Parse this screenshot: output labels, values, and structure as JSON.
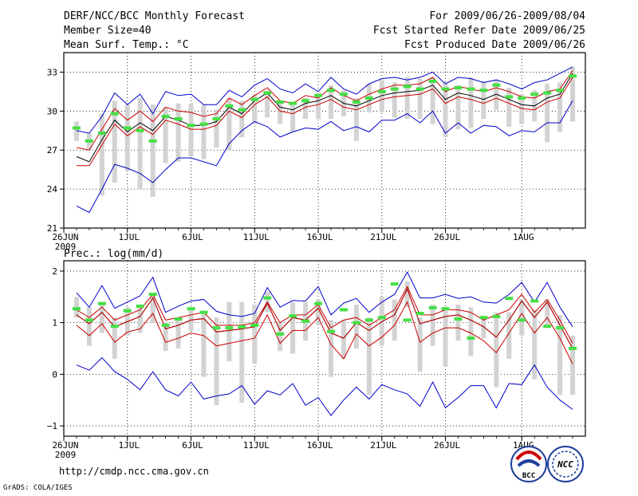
{
  "header": {
    "title": "DERF/NCC/BCC Monthly Forecast",
    "member_size": "Member Size=40",
    "variable": "Mean Surf. Temp.: °C",
    "valid_range": "For 2009/06/26-2009/08/04",
    "start_date": "Fcst Started Refer Date 2009/06/25",
    "produced_date": "Fcst Produced Date 2009/06/26"
  },
  "footer": {
    "url": "http://cmdp.ncc.cma.gov.cn",
    "credit": "GrADS: COLA/IGES",
    "logo_left_text": "BCC",
    "logo_right_text": "NCC"
  },
  "colors": {
    "background": "#ffffff",
    "max_min_line": "#0000cc",
    "spread_line": "#cc0000",
    "ensemble_mean_dark": "#000000",
    "ensemble_mean_light": "#cc0000",
    "member_bar": "#d3d3d3",
    "reference_marker": "#44e044",
    "grid": "#000000"
  },
  "chart_data": [
    {
      "type": "line",
      "title": "Mean Surf. Temp.: °C",
      "xlabel": "",
      "ylabel": "°C",
      "ylim": [
        21,
        34.5
      ],
      "yticks": [
        21,
        24,
        27,
        30,
        33
      ],
      "ytick_labels": [
        "21",
        "24",
        "27",
        "30",
        "33"
      ],
      "xtick_days": [
        0,
        5,
        10,
        15,
        20,
        25,
        30,
        36
      ],
      "xtick_labels": [
        "26JUN",
        "1JUL",
        "6JUL",
        "11JUL",
        "16JUL",
        "21JUL",
        "26JUL",
        "1AUG"
      ],
      "xtick_year": "2009",
      "x": [
        1,
        2,
        3,
        4,
        5,
        6,
        7,
        8,
        9,
        10,
        11,
        12,
        13,
        14,
        15,
        16,
        17,
        18,
        19,
        20,
        21,
        22,
        23,
        24,
        25,
        26,
        27,
        28,
        29,
        30,
        31,
        32,
        33,
        34,
        35,
        36,
        37,
        38,
        39,
        40
      ],
      "series": [
        {
          "name": "ensemble max",
          "color": "#0000cc",
          "values": [
            28.5,
            28.3,
            29.6,
            31.4,
            30.5,
            31.3,
            29.8,
            31.5,
            31.2,
            31.3,
            30.5,
            30.5,
            31.6,
            31.1,
            32.0,
            32.5,
            31.7,
            31.4,
            32.1,
            31.5,
            32.6,
            31.7,
            31.3,
            32.1,
            32.5,
            32.6,
            32.4,
            32.6,
            33.0,
            32.1,
            32.6,
            32.5,
            32.2,
            32.4,
            32.1,
            31.7,
            32.2,
            32.4,
            32.9,
            33.4
          ]
        },
        {
          "name": "spread upper",
          "color": "#cc0000",
          "values": [
            27.2,
            27.0,
            28.6,
            30.2,
            29.3,
            30.0,
            29.2,
            30.3,
            30.0,
            29.9,
            29.6,
            29.8,
            31.0,
            30.5,
            31.2,
            31.8,
            30.8,
            30.6,
            31.2,
            31.0,
            31.8,
            31.2,
            30.8,
            31.3,
            31.7,
            32.0,
            32.0,
            32.1,
            32.6,
            31.5,
            31.9,
            31.7,
            31.5,
            31.8,
            31.5,
            31.1,
            31.0,
            31.5,
            31.7,
            33.1
          ]
        },
        {
          "name": "ensemble mean",
          "color": "#000000",
          "values": [
            26.5,
            26.1,
            27.8,
            29.3,
            28.4,
            29.1,
            28.5,
            29.6,
            29.3,
            28.9,
            28.9,
            29.2,
            30.3,
            29.8,
            30.8,
            31.4,
            30.3,
            30.1,
            30.6,
            30.8,
            31.2,
            30.6,
            30.4,
            30.8,
            31.2,
            31.4,
            31.5,
            31.6,
            32.0,
            30.9,
            31.4,
            31.2,
            30.9,
            31.3,
            30.9,
            30.5,
            30.4,
            31.0,
            31.3,
            32.9
          ]
        },
        {
          "name": "spread lower",
          "color": "#cc0000",
          "values": [
            25.8,
            25.8,
            27.4,
            29.0,
            28.1,
            28.8,
            28.2,
            29.3,
            29.0,
            28.6,
            28.6,
            28.9,
            30.0,
            29.5,
            30.5,
            31.1,
            30.0,
            29.8,
            30.3,
            30.5,
            30.9,
            30.3,
            30.1,
            30.5,
            30.9,
            31.1,
            31.2,
            31.3,
            31.7,
            30.6,
            31.1,
            30.9,
            30.6,
            31.0,
            30.6,
            30.2,
            30.1,
            30.7,
            31.0,
            32.6
          ]
        },
        {
          "name": "ensemble min",
          "color": "#0000cc",
          "values": [
            22.7,
            22.2,
            24.0,
            25.9,
            25.6,
            25.2,
            24.5,
            25.5,
            26.4,
            26.4,
            26.1,
            25.8,
            27.5,
            28.5,
            29.2,
            28.8,
            28.0,
            28.4,
            28.7,
            28.6,
            29.2,
            28.5,
            28.8,
            28.4,
            29.3,
            29.3,
            29.8,
            29.1,
            30.0,
            28.3,
            29.1,
            28.3,
            28.9,
            28.8,
            28.1,
            28.5,
            28.4,
            29.1,
            29.1,
            30.8
          ]
        }
      ],
      "member_ranges": [
        [
          27.7,
          29.2
        ],
        [
          27.0,
          28.3
        ],
        [
          23.5,
          29.8
        ],
        [
          24.5,
          30.8
        ],
        [
          25.4,
          30.5
        ],
        [
          24.0,
          31.0
        ],
        [
          23.4,
          30.5
        ],
        [
          26.0,
          30.3
        ],
        [
          26.1,
          30.6
        ],
        [
          26.5,
          30.6
        ],
        [
          26.3,
          30.5
        ],
        [
          27.2,
          30.1
        ],
        [
          27.0,
          31.0
        ],
        [
          28.0,
          30.8
        ],
        [
          29.0,
          31.3
        ],
        [
          29.5,
          31.6
        ],
        [
          29.0,
          30.6
        ],
        [
          28.4,
          30.6
        ],
        [
          29.4,
          31.0
        ],
        [
          29.4,
          31.4
        ],
        [
          29.4,
          32.0
        ],
        [
          29.6,
          31.6
        ],
        [
          27.7,
          31.0
        ],
        [
          29.9,
          32.1
        ],
        [
          29.9,
          32.4
        ],
        [
          29.5,
          32.2
        ],
        [
          29.4,
          32.6
        ],
        [
          29.4,
          32.5
        ],
        [
          29.0,
          32.6
        ],
        [
          28.0,
          32.2
        ],
        [
          28.6,
          32.0
        ],
        [
          28.7,
          32.6
        ],
        [
          29.4,
          32.3
        ],
        [
          30.1,
          32.4
        ],
        [
          28.8,
          31.8
        ],
        [
          29.0,
          31.3
        ],
        [
          29.2,
          31.6
        ],
        [
          27.6,
          32.1
        ],
        [
          28.4,
          32.2
        ],
        [
          29.2,
          33.4
        ]
      ],
      "reference_markers": [
        28.7,
        27.7,
        28.3,
        29.8,
        28.7,
        28.5,
        27.7,
        29.6,
        29.4,
        28.9,
        29.0,
        29.4,
        30.4,
        30.1,
        30.9,
        31.4,
        30.7,
        30.6,
        30.8,
        31.2,
        31.6,
        31.3,
        30.7,
        31.0,
        31.5,
        31.7,
        31.9,
        31.7,
        32.3,
        31.7,
        31.8,
        31.7,
        31.6,
        32.0,
        31.1,
        31.0,
        31.3,
        31.4,
        31.6,
        32.7
      ]
    },
    {
      "type": "line",
      "title": "Prec.: log(mm/d)",
      "xlabel": "",
      "ylabel": "log(mm/d)",
      "ylim": [
        -1.2,
        2.2
      ],
      "yticks": [
        -1,
        0,
        1,
        2
      ],
      "ytick_labels": [
        "−1",
        "0",
        "1",
        "2"
      ],
      "xtick_days": [
        0,
        5,
        10,
        15,
        20,
        25,
        30,
        36
      ],
      "xtick_labels": [
        "26JUN",
        "1JUL",
        "6JUL",
        "11JUL",
        "16JUL",
        "21JUL",
        "26JUL",
        "1AUG"
      ],
      "xtick_year": "2009",
      "x": [
        1,
        2,
        3,
        4,
        5,
        6,
        7,
        8,
        9,
        10,
        11,
        12,
        13,
        14,
        15,
        16,
        17,
        18,
        19,
        20,
        21,
        22,
        23,
        24,
        25,
        26,
        27,
        28,
        29,
        30,
        31,
        32,
        33,
        34,
        35,
        36,
        37,
        38,
        39,
        40
      ],
      "series": [
        {
          "name": "ensemble max",
          "color": "#0000cc",
          "values": [
            1.58,
            1.3,
            1.72,
            1.28,
            1.4,
            1.52,
            1.88,
            1.2,
            1.32,
            1.42,
            1.45,
            1.22,
            1.15,
            1.12,
            1.18,
            1.68,
            1.3,
            1.43,
            1.42,
            1.7,
            1.15,
            1.38,
            1.47,
            1.2,
            1.4,
            1.55,
            1.98,
            1.48,
            1.48,
            1.55,
            1.47,
            1.5,
            1.4,
            1.38,
            1.55,
            1.78,
            1.4,
            1.78,
            1.3,
            0.92
          ]
        },
        {
          "name": "spread upper",
          "color": "#cc0000",
          "values": [
            1.25,
            1.1,
            1.3,
            1.05,
            1.15,
            1.25,
            1.55,
            1.05,
            1.1,
            1.15,
            1.2,
            0.95,
            0.95,
            0.95,
            1.0,
            1.4,
            1.0,
            1.15,
            1.15,
            1.35,
            0.9,
            1.05,
            1.1,
            0.95,
            1.1,
            1.25,
            1.7,
            1.15,
            1.15,
            1.25,
            1.25,
            1.2,
            1.05,
            1.15,
            1.25,
            1.55,
            1.2,
            1.45,
            1.05,
            0.6
          ]
        },
        {
          "name": "ensemble mean",
          "color": "#000000",
          "values": [
            1.15,
            0.98,
            1.2,
            0.92,
            1.02,
            1.12,
            1.48,
            0.88,
            0.95,
            1.05,
            1.08,
            0.82,
            0.85,
            0.88,
            0.92,
            1.38,
            0.85,
            1.1,
            1.05,
            1.28,
            0.8,
            0.7,
            1.0,
            0.85,
            1.02,
            1.15,
            1.65,
            0.98,
            1.05,
            1.12,
            1.15,
            1.05,
            0.92,
            0.72,
            1.05,
            1.42,
            1.1,
            1.4,
            0.95,
            0.5
          ]
        },
        {
          "name": "spread lower",
          "color": "#cc0000",
          "values": [
            0.95,
            0.75,
            0.98,
            0.62,
            0.82,
            0.88,
            1.18,
            0.62,
            0.7,
            0.8,
            0.75,
            0.55,
            0.6,
            0.65,
            0.7,
            1.15,
            0.6,
            0.85,
            0.85,
            1.1,
            0.58,
            0.3,
            0.78,
            0.55,
            0.72,
            0.95,
            1.4,
            0.62,
            0.8,
            0.9,
            0.9,
            0.8,
            0.65,
            0.42,
            0.8,
            1.18,
            0.8,
            1.1,
            0.7,
            0.2
          ]
        },
        {
          "name": "ensemble min",
          "color": "#0000cc",
          "values": [
            0.18,
            0.08,
            0.32,
            0.05,
            -0.1,
            -0.3,
            0.05,
            -0.3,
            -0.42,
            -0.15,
            -0.48,
            -0.42,
            -0.38,
            -0.22,
            -0.58,
            -0.32,
            -0.4,
            -0.18,
            -0.6,
            -0.45,
            -0.8,
            -0.5,
            -0.25,
            -0.48,
            -0.2,
            -0.3,
            -0.38,
            -0.62,
            -0.15,
            -0.65,
            -0.45,
            -0.22,
            -0.22,
            -0.65,
            -0.18,
            -0.2,
            0.18,
            -0.25,
            -0.5,
            -0.68
          ]
        },
        {
          "name": "ensemble mean (red overlay)",
          "color": "#cc0000",
          "values": [
            1.15,
            0.98,
            1.2,
            0.92,
            1.02,
            1.12,
            1.48,
            0.88,
            0.95,
            1.05,
            1.08,
            0.82,
            0.85,
            0.88,
            0.92,
            1.38,
            0.85,
            1.1,
            1.05,
            1.28,
            0.8,
            0.7,
            1.0,
            0.85,
            1.02,
            1.15,
            1.65,
            0.98,
            1.05,
            1.12,
            1.15,
            1.05,
            0.92,
            0.72,
            1.05,
            1.42,
            1.1,
            1.4,
            0.95,
            0.5
          ]
        }
      ],
      "member_ranges": [
        [
          1.1,
          1.5
        ],
        [
          0.55,
          1.3
        ],
        [
          0.8,
          1.4
        ],
        [
          0.3,
          1.1
        ],
        [
          0.75,
          1.3
        ],
        [
          0.8,
          1.35
        ],
        [
          1.0,
          1.55
        ],
        [
          0.45,
          1.0
        ],
        [
          0.5,
          1.1
        ],
        [
          0.85,
          1.3
        ],
        [
          -0.05,
          1.2
        ],
        [
          -0.6,
          1.1
        ],
        [
          0.25,
          1.4
        ],
        [
          -0.55,
          1.4
        ],
        [
          0.2,
          1.35
        ],
        [
          1.2,
          1.6
        ],
        [
          0.45,
          1.0
        ],
        [
          0.4,
          1.4
        ],
        [
          0.65,
          1.4
        ],
        [
          0.95,
          1.45
        ],
        [
          -0.05,
          1.05
        ],
        [
          0.3,
          1.05
        ],
        [
          0.5,
          1.35
        ],
        [
          -0.4,
          1.1
        ],
        [
          0.55,
          1.5
        ],
        [
          0.65,
          1.45
        ],
        [
          1.3,
          1.8
        ],
        [
          0.05,
          1.1
        ],
        [
          0.55,
          1.35
        ],
        [
          0.15,
          1.3
        ],
        [
          0.65,
          1.35
        ],
        [
          0.35,
          1.3
        ],
        [
          0.7,
          1.1
        ],
        [
          -0.25,
          1.2
        ],
        [
          0.3,
          1.2
        ],
        [
          0.75,
          1.45
        ],
        [
          -0.1,
          1.25
        ],
        [
          0.9,
          1.45
        ],
        [
          -0.4,
          1.15
        ],
        [
          -0.4,
          0.75
        ]
      ],
      "reference_markers": [
        1.27,
        1.05,
        1.37,
        0.93,
        1.23,
        1.32,
        1.55,
        0.95,
        1.07,
        1.27,
        1.2,
        0.9,
        0.9,
        0.92,
        0.95,
        1.48,
        0.78,
        1.13,
        1.03,
        1.37,
        0.83,
        1.25,
        1.0,
        1.05,
        1.1,
        1.75,
        1.05,
        1.18,
        1.29,
        1.27,
        1.07,
        0.7,
        1.1,
        1.12,
        1.47,
        1.05,
        1.42,
        0.93,
        0.9,
        0.5
      ]
    }
  ]
}
